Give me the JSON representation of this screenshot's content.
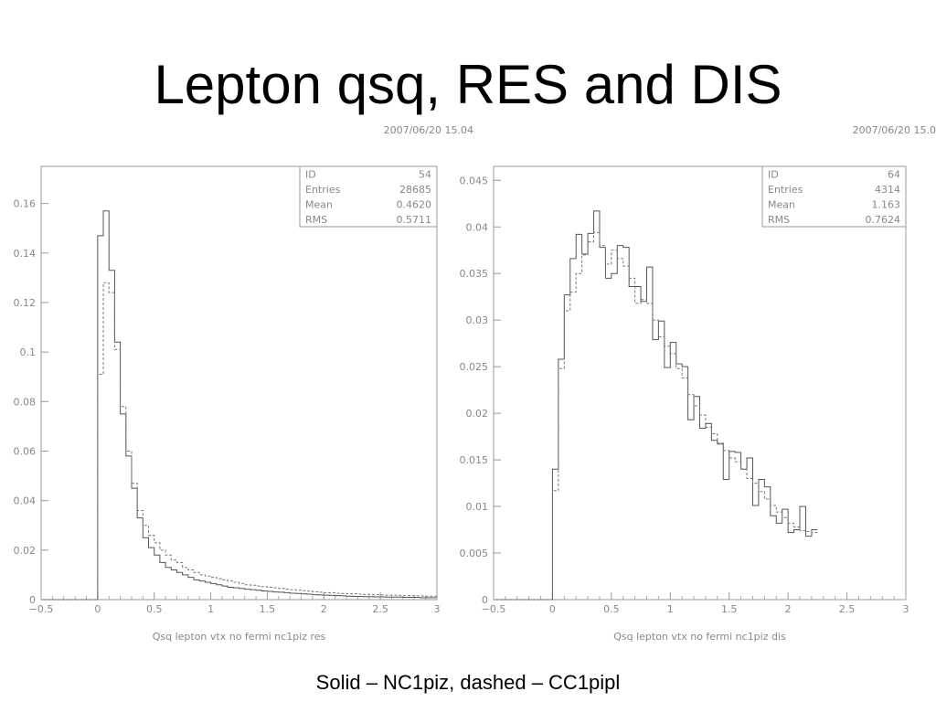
{
  "slide": {
    "title": "Lepton qsq, RES and DIS",
    "caption": "Solid – NC1piz, dashed – CC1pipl"
  },
  "chart_data": [
    {
      "type": "histogram",
      "timestamp": "2007/06/20  15.04",
      "xlabel": "Qsq lepton vtx no fermi nc1piz res",
      "xlim": [
        -0.5,
        3
      ],
      "ylim": [
        0,
        0.175
      ],
      "xticks": [
        "−0.5",
        "0",
        "0.5",
        "1",
        "1.5",
        "2",
        "2.5",
        "3"
      ],
      "xtick_values": [
        -0.5,
        0,
        0.5,
        1,
        1.5,
        2,
        2.5,
        3
      ],
      "yticks": [
        "0",
        "0.02",
        "0.04",
        "0.06",
        "0.08",
        "0.1",
        "0.12",
        "0.14",
        "0.16"
      ],
      "ytick_values": [
        0,
        0.02,
        0.04,
        0.06,
        0.08,
        0.1,
        0.12,
        0.14,
        0.16
      ],
      "stats": [
        {
          "label": "ID",
          "value": "54"
        },
        {
          "label": "Entries",
          "value": "28685"
        },
        {
          "label": "Mean",
          "value": "0.4620"
        },
        {
          "label": "RMS",
          "value": "0.5711"
        }
      ],
      "bin_width": 0.05,
      "bin_start": 0,
      "series": [
        {
          "name": "NC1piz",
          "style": "solid",
          "values": [
            0.147,
            0.157,
            0.133,
            0.104,
            0.075,
            0.058,
            0.045,
            0.033,
            0.025,
            0.021,
            0.018,
            0.015,
            0.013,
            0.012,
            0.011,
            0.01,
            0.009,
            0.008,
            0.0075,
            0.007,
            0.0065,
            0.006,
            0.0055,
            0.005,
            0.0048,
            0.0045,
            0.0042,
            0.004,
            0.0038,
            0.0035,
            0.0033,
            0.0031,
            0.003,
            0.0028,
            0.0026,
            0.0025,
            0.0023,
            0.0022,
            0.002,
            0.0019,
            0.0018,
            0.0017,
            0.0016,
            0.0015,
            0.0014,
            0.0013,
            0.0013,
            0.0012,
            0.0012,
            0.0011,
            0.0011,
            0.001,
            0.001,
            0.001,
            0.0009,
            0.0009,
            0.0009,
            0.0008,
            0.0008,
            0.0008
          ]
        },
        {
          "name": "CC1pipl",
          "style": "dashed",
          "values": [
            0.091,
            0.128,
            0.124,
            0.101,
            0.078,
            0.06,
            0.047,
            0.036,
            0.03,
            0.026,
            0.023,
            0.02,
            0.018,
            0.016,
            0.015,
            0.013,
            0.012,
            0.011,
            0.01,
            0.0095,
            0.009,
            0.0085,
            0.008,
            0.0075,
            0.007,
            0.0065,
            0.006,
            0.0058,
            0.0055,
            0.0052,
            0.005,
            0.0048,
            0.0045,
            0.0042,
            0.004,
            0.0038,
            0.0036,
            0.0034,
            0.0032,
            0.003,
            0.0028,
            0.0027,
            0.0026,
            0.0025,
            0.0024,
            0.0023,
            0.0022,
            0.0021,
            0.002,
            0.002,
            0.0019,
            0.0018,
            0.0018,
            0.0017,
            0.0016,
            0.0016,
            0.0015,
            0.0015,
            0.0014,
            0.0014
          ]
        }
      ]
    },
    {
      "type": "histogram",
      "timestamp": "2007/06/20  15.0",
      "xlabel": "Qsq lepton vtx no fermi nc1piz dis",
      "xlim": [
        -0.5,
        3
      ],
      "ylim": [
        0,
        0.0465
      ],
      "xticks": [
        "−0.5",
        "0",
        "0.5",
        "1",
        "1.5",
        "2",
        "2.5",
        "3"
      ],
      "xtick_values": [
        -0.5,
        0,
        0.5,
        1,
        1.5,
        2,
        2.5,
        3
      ],
      "yticks": [
        "0",
        "0.005",
        "0.01",
        "0.015",
        "0.02",
        "0.025",
        "0.03",
        "0.035",
        "0.04",
        "0.045"
      ],
      "ytick_values": [
        0,
        0.005,
        0.01,
        0.015,
        0.02,
        0.025,
        0.03,
        0.035,
        0.04,
        0.045
      ],
      "stats": [
        {
          "label": "ID",
          "value": "64"
        },
        {
          "label": "Entries",
          "value": "4314"
        },
        {
          "label": "Mean",
          "value": "1.163"
        },
        {
          "label": "RMS",
          "value": "0.7624"
        }
      ],
      "bin_width": 0.05,
      "bin_start": 0,
      "series": [
        {
          "name": "NC1piz",
          "style": "solid",
          "values": [
            0.014,
            0.0258,
            0.0327,
            0.0366,
            0.0392,
            0.0371,
            0.0393,
            0.0417,
            0.0378,
            0.0345,
            0.035,
            0.038,
            0.0378,
            0.0336,
            0.0336,
            0.032,
            0.0357,
            0.0279,
            0.0299,
            0.0249,
            0.0276,
            0.0253,
            0.025,
            0.0193,
            0.0218,
            0.0184,
            0.0189,
            0.0171,
            0.0167,
            0.0129,
            0.0159,
            0.0158,
            0.014,
            0.0152,
            0.0101,
            0.0129,
            0.0121,
            0.009,
            0.0082,
            0.0097,
            0.0072,
            0.0075,
            0.01,
            0.0068,
            0.0075
          ]
        },
        {
          "name": "CC1pipl",
          "style": "dashed",
          "values": [
            0.0117,
            0.0248,
            0.031,
            0.033,
            0.035,
            0.037,
            0.0384,
            0.0394,
            0.038,
            0.036,
            0.0375,
            0.0366,
            0.0358,
            0.0345,
            0.0318,
            0.0322,
            0.0318,
            0.03,
            0.0282,
            0.0272,
            0.0264,
            0.0248,
            0.0238,
            0.022,
            0.0208,
            0.0198,
            0.0185,
            0.0178,
            0.0168,
            0.016,
            0.0152,
            0.0148,
            0.014,
            0.013,
            0.0125,
            0.0116,
            0.0108,
            0.0101,
            0.0094,
            0.0088,
            0.0082,
            0.0078,
            0.0074,
            0.0073,
            0.0072
          ]
        }
      ]
    }
  ]
}
